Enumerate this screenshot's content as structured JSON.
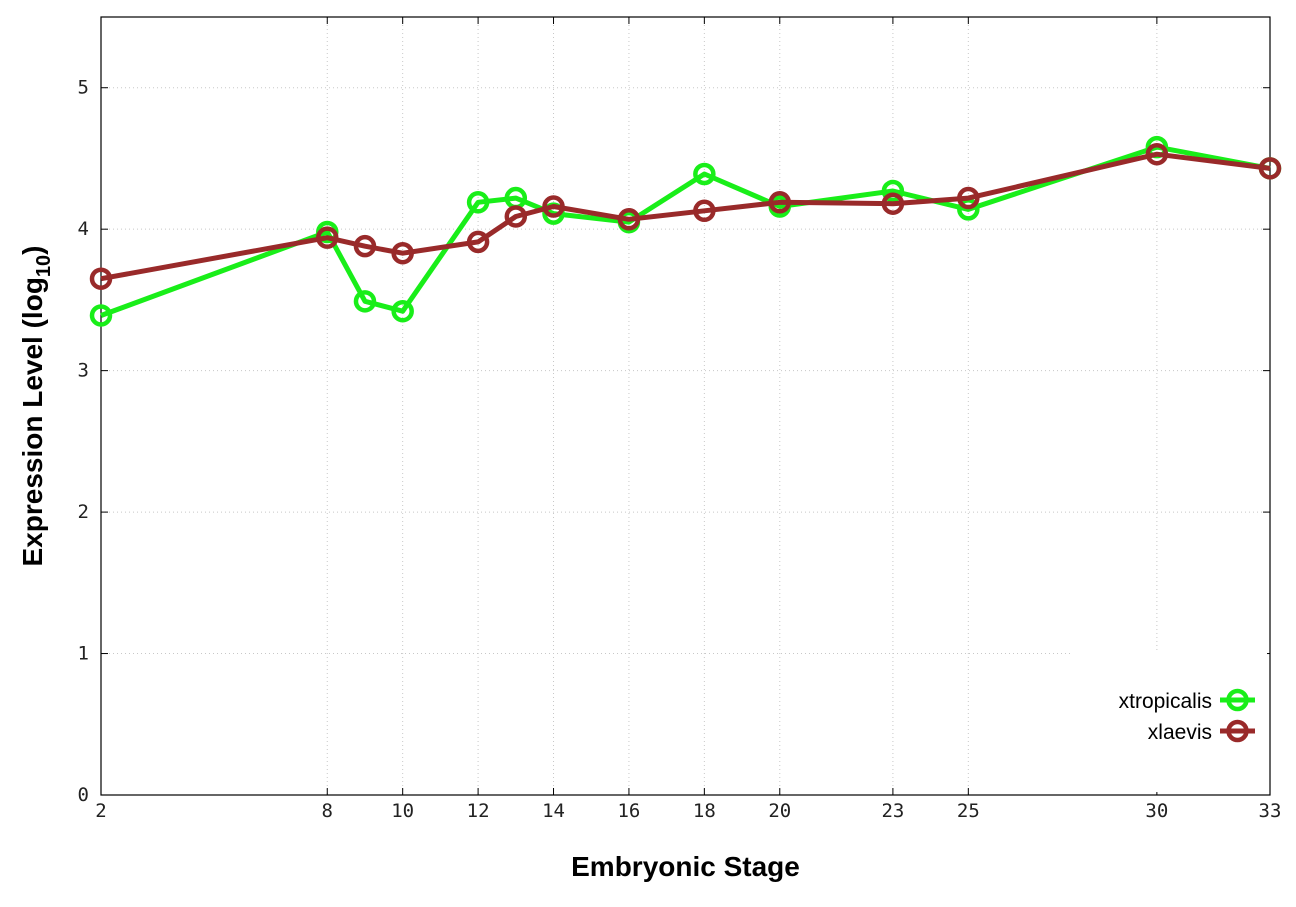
{
  "chart_data": {
    "type": "line",
    "xlabel": "Embryonic Stage",
    "ylabel": "Expression Level (log",
    "ylabel_sub": "10",
    "ylabel_close": ")",
    "x_ticks": [
      2,
      8,
      10,
      12,
      14,
      16,
      18,
      20,
      23,
      25,
      30,
      33
    ],
    "x_tick_labels": [
      "2",
      "8",
      "10",
      "12",
      "14",
      "16",
      "18",
      "20",
      "23",
      "25",
      "30",
      "33"
    ],
    "y_ticks": [
      0,
      1,
      2,
      3,
      4,
      5
    ],
    "y_tick_labels": [
      "0",
      "1",
      "2",
      "3",
      "4",
      "5"
    ],
    "xlim": [
      2,
      33
    ],
    "ylim": [
      0,
      5.5
    ],
    "grid": true,
    "legend_position": "bottom-right",
    "series": [
      {
        "name": "xtropicalis",
        "color": "#19ee19",
        "x": [
          2,
          8,
          9,
          10,
          12,
          13,
          14,
          16,
          18,
          20,
          23,
          25,
          30,
          33
        ],
        "y": [
          3.39,
          3.98,
          3.49,
          3.42,
          4.19,
          4.22,
          4.11,
          4.05,
          4.39,
          4.16,
          4.27,
          4.14,
          4.58,
          4.43
        ]
      },
      {
        "name": "xlaevis",
        "color": "#992a2a",
        "x": [
          2,
          8,
          9,
          10,
          12,
          13,
          14,
          16,
          18,
          20,
          23,
          25,
          30,
          33
        ],
        "y": [
          3.65,
          3.94,
          3.88,
          3.83,
          3.91,
          4.09,
          4.16,
          4.07,
          4.13,
          4.19,
          4.18,
          4.22,
          4.53,
          4.43
        ]
      }
    ]
  }
}
